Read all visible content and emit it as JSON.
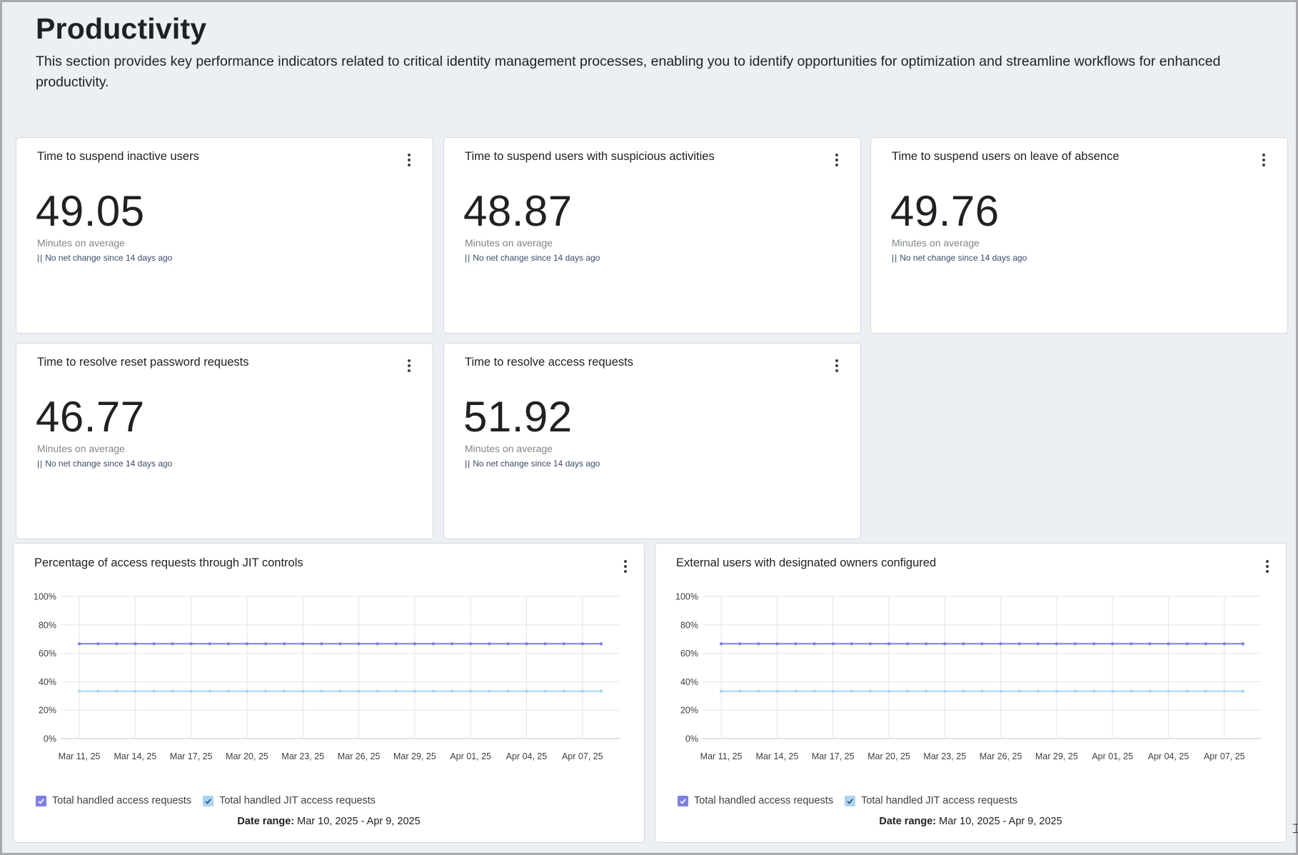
{
  "header": {
    "title": "Productivity",
    "subtitle": "This section provides key performance indicators related to critical identity management processes, enabling you to identify opportunities for optimization and streamline workflows for enhanced productivity."
  },
  "kpis": [
    {
      "title": "Time to suspend inactive users",
      "value": "49.05",
      "unit": "Minutes on average",
      "change": "No net change since 14 days ago"
    },
    {
      "title": "Time to suspend users with suspicious activities",
      "value": "48.87",
      "unit": "Minutes on average",
      "change": "No net change since 14 days ago"
    },
    {
      "title": "Time to suspend users on leave of absence",
      "value": "49.76",
      "unit": "Minutes on average",
      "change": "No net change since 14 days ago"
    },
    {
      "title": "Time to resolve reset password requests",
      "value": "46.77",
      "unit": "Minutes on average",
      "change": "No net change since 14 days ago"
    },
    {
      "title": "Time to resolve access requests",
      "value": "51.92",
      "unit": "Minutes on average",
      "change": "No net change since 14 days ago"
    }
  ],
  "change_marker": "||",
  "charts": [
    {
      "title": "Percentage of access requests through JIT controls",
      "legend": [
        "Total handled access requests",
        "Total handled JIT access requests"
      ],
      "date_range_label": "Date range:",
      "date_range_value": "Mar 10, 2025 - Apr 9, 2025"
    },
    {
      "title": "External users with designated owners configured",
      "legend": [
        "Total handled access requests",
        "Total handled JIT access requests"
      ],
      "date_range_label": "Date range:",
      "date_range_value": "Mar 10, 2025 - Apr 9, 2025"
    }
  ],
  "chart_data": [
    {
      "type": "line",
      "title": "Percentage of access requests through JIT controls",
      "x_tick_labels": [
        "Mar 11, 25",
        "Mar 14, 25",
        "Mar 17, 25",
        "Mar 20, 25",
        "Mar 23, 25",
        "Mar 26, 25",
        "Mar 29, 25",
        "Apr 01, 25",
        "Apr 04, 25",
        "Apr 07, 25"
      ],
      "x_start": "2025-03-10",
      "x_end": "2025-04-09",
      "y_tick_labels": [
        "0%",
        "20%",
        "40%",
        "60%",
        "80%",
        "100%"
      ],
      "ylim": [
        0,
        100
      ],
      "grid": true,
      "series": [
        {
          "name": "Total handled access requests",
          "color": "#7b7fe6",
          "value": 66.7
        },
        {
          "name": "Total handled JIT access requests",
          "color": "#a9d4f2",
          "value": 33.3
        }
      ]
    },
    {
      "type": "line",
      "title": "External users with designated owners configured",
      "x_tick_labels": [
        "Mar 11, 25",
        "Mar 14, 25",
        "Mar 17, 25",
        "Mar 20, 25",
        "Mar 23, 25",
        "Mar 26, 25",
        "Mar 29, 25",
        "Apr 01, 25",
        "Apr 04, 25",
        "Apr 07, 25"
      ],
      "x_start": "2025-03-10",
      "x_end": "2025-04-09",
      "y_tick_labels": [
        "0%",
        "20%",
        "40%",
        "60%",
        "80%",
        "100%"
      ],
      "ylim": [
        0,
        100
      ],
      "grid": true,
      "series": [
        {
          "name": "Total handled access requests",
          "color": "#7b7fe6",
          "value": 66.7
        },
        {
          "name": "Total handled JIT access requests",
          "color": "#a9d4f2",
          "value": 33.3
        }
      ]
    }
  ]
}
